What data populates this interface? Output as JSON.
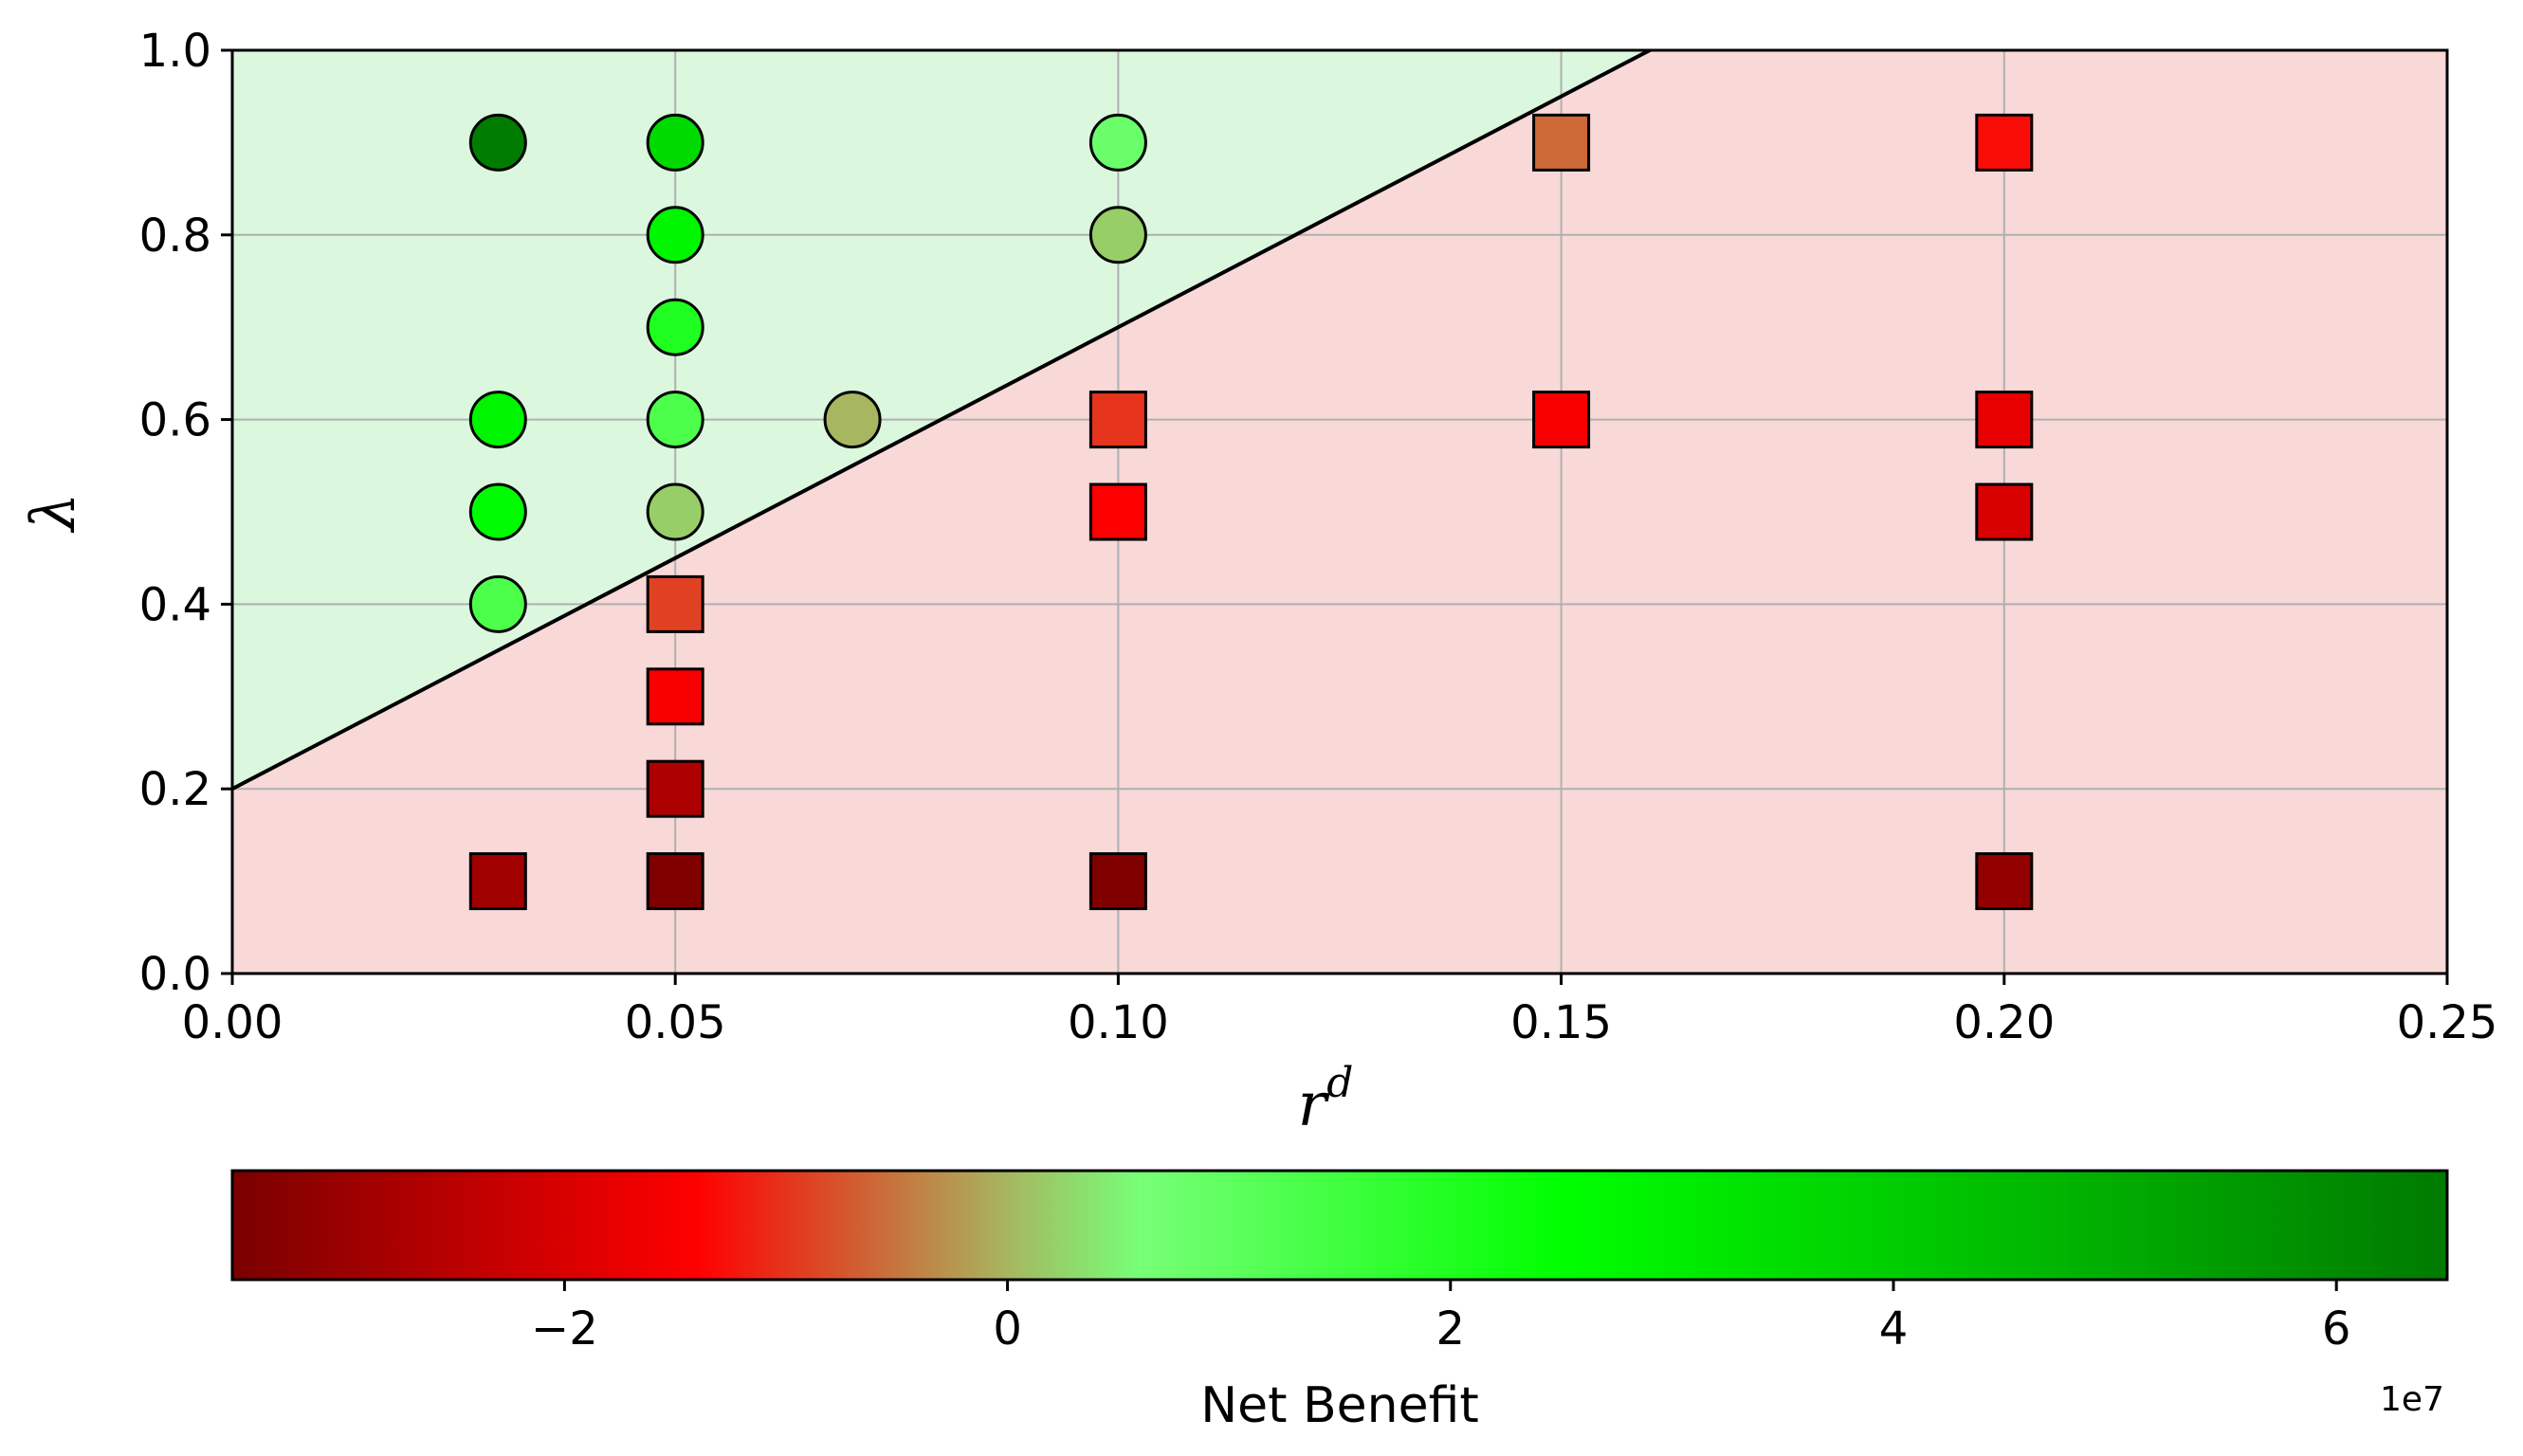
{
  "chart_data": {
    "type": "scatter",
    "xlabel": "r",
    "xlabel_superscript": "d",
    "ylabel": "λ",
    "xlim": [
      0.0,
      0.25
    ],
    "ylim": [
      0.0,
      1.0
    ],
    "x_ticks": [
      "0.00",
      "0.05",
      "0.10",
      "0.15",
      "0.20",
      "0.25"
    ],
    "y_ticks": [
      "0.0",
      "0.2",
      "0.4",
      "0.6",
      "0.8",
      "1.0"
    ],
    "grid": true,
    "boundary_line": {
      "slope": 5.0,
      "intercept": 0.2
    },
    "regions": {
      "above_color": "#dbf7de",
      "below_color": "#f9d8d8"
    },
    "colorbar": {
      "label": "Net Benefit",
      "exponent_label": "1e7",
      "min": -3.5,
      "max": 6.5,
      "ticks": [
        {
          "value": -2,
          "label": "−2"
        },
        {
          "value": 0,
          "label": "0"
        },
        {
          "value": 2,
          "label": "2"
        },
        {
          "value": 4,
          "label": "4"
        },
        {
          "value": 6,
          "label": "6"
        }
      ],
      "colors": [
        {
          "value": -3.5,
          "color": "#7a0000"
        },
        {
          "value": -1.4,
          "color": "#ff0000"
        },
        {
          "value": 0.0,
          "color": "#a7b661"
        },
        {
          "value": 0.6,
          "color": "#77ff77"
        },
        {
          "value": 2.5,
          "color": "#00ff00"
        },
        {
          "value": 6.5,
          "color": "#007a00"
        }
      ]
    },
    "series": [
      {
        "marker": "circle",
        "points": [
          {
            "x": 0.03,
            "y": 0.9,
            "value": 6.4
          },
          {
            "x": 0.03,
            "y": 0.6,
            "value": 2.8
          },
          {
            "x": 0.03,
            "y": 0.5,
            "value": 2.6
          },
          {
            "x": 0.03,
            "y": 0.4,
            "value": 1.3
          },
          {
            "x": 0.05,
            "y": 0.9,
            "value": 3.6
          },
          {
            "x": 0.05,
            "y": 0.8,
            "value": 2.8
          },
          {
            "x": 0.05,
            "y": 0.7,
            "value": 2.0
          },
          {
            "x": 0.05,
            "y": 0.6,
            "value": 1.3
          },
          {
            "x": 0.05,
            "y": 0.5,
            "value": 0.2
          },
          {
            "x": 0.07,
            "y": 0.6,
            "value": 0.0
          },
          {
            "x": 0.1,
            "y": 0.9,
            "value": 0.8
          },
          {
            "x": 0.1,
            "y": 0.8,
            "value": 0.2
          }
        ]
      },
      {
        "marker": "square",
        "points": [
          {
            "x": 0.03,
            "y": 0.1,
            "value": -2.9
          },
          {
            "x": 0.05,
            "y": 0.4,
            "value": -0.9
          },
          {
            "x": 0.05,
            "y": 0.3,
            "value": -1.5
          },
          {
            "x": 0.05,
            "y": 0.2,
            "value": -2.7
          },
          {
            "x": 0.05,
            "y": 0.1,
            "value": -3.4
          },
          {
            "x": 0.1,
            "y": 0.6,
            "value": -1.0
          },
          {
            "x": 0.1,
            "y": 0.5,
            "value": -1.4
          },
          {
            "x": 0.1,
            "y": 0.1,
            "value": -3.4
          },
          {
            "x": 0.15,
            "y": 0.9,
            "value": -0.6
          },
          {
            "x": 0.15,
            "y": 0.6,
            "value": -1.5
          },
          {
            "x": 0.2,
            "y": 0.9,
            "value": -1.3
          },
          {
            "x": 0.2,
            "y": 0.6,
            "value": -1.8
          },
          {
            "x": 0.2,
            "y": 0.5,
            "value": -2.0
          },
          {
            "x": 0.2,
            "y": 0.1,
            "value": -3.1
          }
        ]
      }
    ]
  }
}
